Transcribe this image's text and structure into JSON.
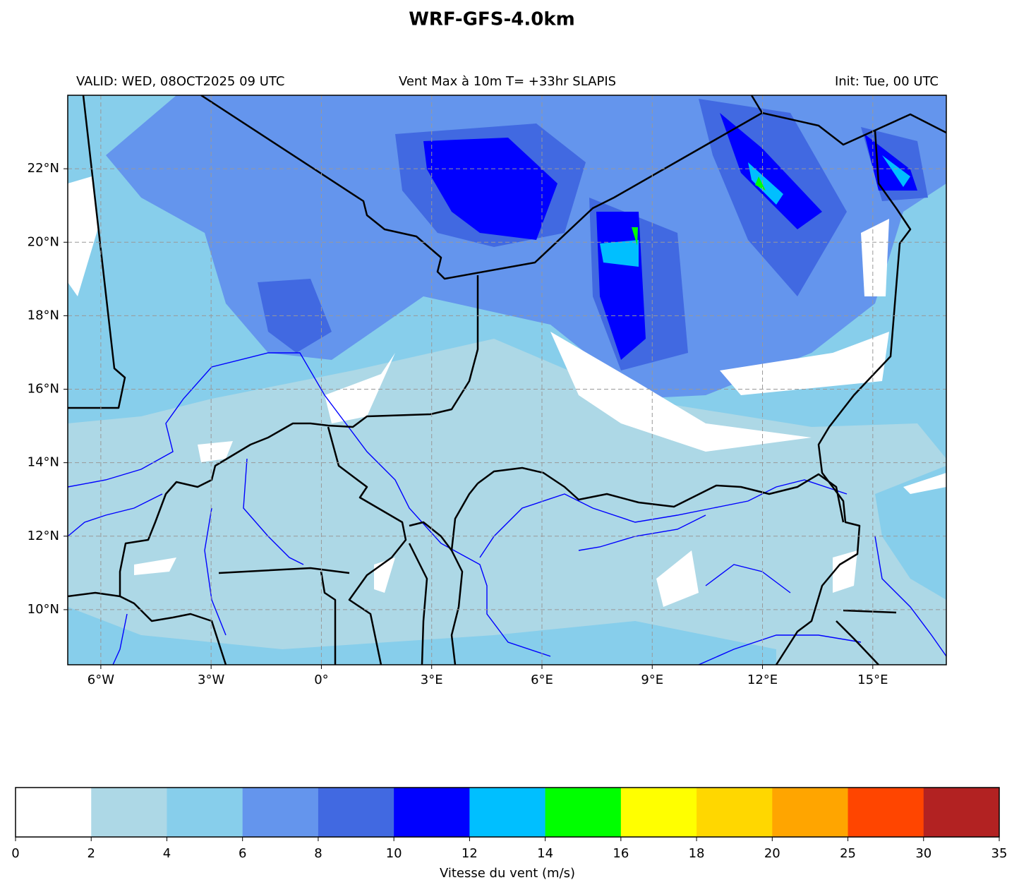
{
  "title": "WRF-GFS-4.0km",
  "valid": "VALID: WED, 08OCT2025 09 UTC",
  "subtitle": "Vent Max à 10m T= +33hr SLAPIS",
  "init": "Init: Tue, 00 UTC",
  "map": {
    "xlim": [
      -6.9,
      17
    ],
    "ylim": [
      8.5,
      24
    ],
    "xticks": [
      {
        "value": -6,
        "label": "6°W"
      },
      {
        "value": -3,
        "label": "3°W"
      },
      {
        "value": 0,
        "label": "0°"
      },
      {
        "value": 3,
        "label": "3°E"
      },
      {
        "value": 6,
        "label": "6°E"
      },
      {
        "value": 9,
        "label": "9°E"
      },
      {
        "value": 12,
        "label": "12°E"
      },
      {
        "value": 15,
        "label": "15°E"
      }
    ],
    "yticks": [
      {
        "value": 10,
        "label": "10°N"
      },
      {
        "value": 12,
        "label": "12°N"
      },
      {
        "value": 14,
        "label": "14°N"
      },
      {
        "value": 16,
        "label": "16°N"
      },
      {
        "value": 18,
        "label": "18°N"
      },
      {
        "value": 20,
        "label": "20°N"
      },
      {
        "value": 22,
        "label": "22°N"
      }
    ],
    "grid": true
  },
  "colorbar": {
    "levels": [
      0,
      2,
      4,
      6,
      8,
      10,
      12,
      14,
      16,
      18,
      20,
      25,
      30,
      35
    ],
    "colors": [
      "#ffffff",
      "#add8e6",
      "#87ceeb",
      "#6495ed",
      "#4169e1",
      "#0000ff",
      "#00bfff",
      "#00ff00",
      "#ffff00",
      "#ffd700",
      "#ffa500",
      "#ff4500",
      "#b22222"
    ],
    "label": "Vitesse du vent (m/s)"
  }
}
